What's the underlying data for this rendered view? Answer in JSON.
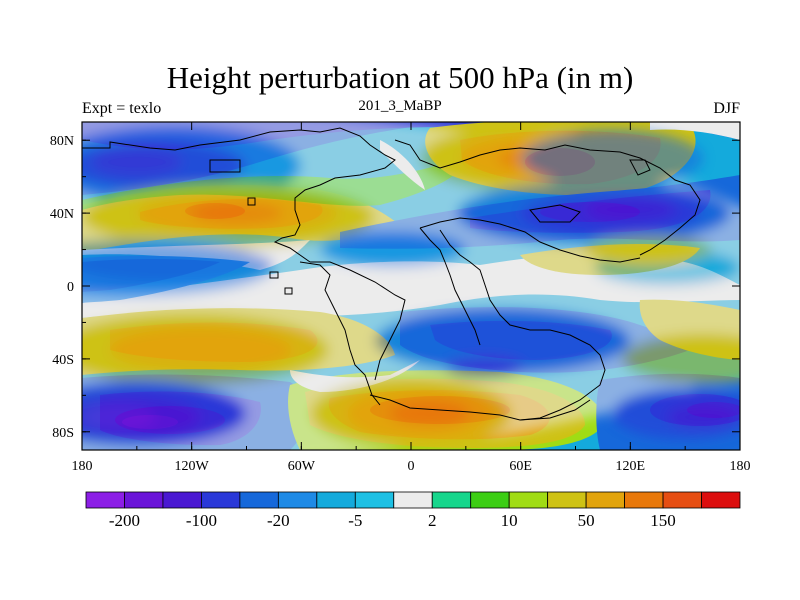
{
  "chart_data": {
    "type": "heatmap",
    "title": "Height perturbation at 500 hPa (in m)",
    "left_subtitle": "Expt = texlo",
    "center_subtitle": "201_3_MaBP",
    "right_subtitle": "DJF",
    "x_ticks": [
      {
        "value": -180,
        "label": "180"
      },
      {
        "value": -120,
        "label": "120W"
      },
      {
        "value": -60,
        "label": "60W"
      },
      {
        "value": 0,
        "label": "0"
      },
      {
        "value": 60,
        "label": "60E"
      },
      {
        "value": 120,
        "label": "120E"
      },
      {
        "value": 180,
        "label": "180"
      }
    ],
    "y_ticks": [
      {
        "value": 80,
        "label": "80N"
      },
      {
        "value": 40,
        "label": "40N"
      },
      {
        "value": 0,
        "label": "0"
      },
      {
        "value": -40,
        "label": "40S"
      },
      {
        "value": -80,
        "label": "80S"
      }
    ],
    "xlim": [
      -180,
      180
    ],
    "ylim": [
      -90,
      90
    ],
    "colorbar": {
      "colors": [
        "#8c1ee6",
        "#6a14d8",
        "#4a18d2",
        "#2a38d8",
        "#1668da",
        "#1e8ae6",
        "#14aadc",
        "#1ec0e4",
        "#ececec",
        "#16d68c",
        "#3cce14",
        "#a0dc14",
        "#cec214",
        "#e2a40c",
        "#e8780a",
        "#e64e12",
        "#dc0e0e"
      ],
      "labels": [
        {
          "after_box": 1,
          "text": "-200"
        },
        {
          "after_box": 3,
          "text": "-100"
        },
        {
          "after_box": 5,
          "text": "-20"
        },
        {
          "after_box": 7,
          "text": "-5"
        },
        {
          "after_box": 9,
          "text": "2"
        },
        {
          "after_box": 11,
          "text": "10"
        },
        {
          "after_box": 13,
          "text": "50"
        },
        {
          "after_box": 15,
          "text": "150"
        }
      ]
    },
    "field_blobs": [
      {
        "lon": -180,
        "lat": 0,
        "rx": 400,
        "ry": 100,
        "color": "#ececec"
      },
      {
        "lon": -130,
        "lat": 66,
        "rx": 70,
        "ry": 22,
        "color": "#1e8ae6"
      },
      {
        "lon": -140,
        "lat": 66,
        "rx": 50,
        "ry": 14,
        "color": "#2a38d8"
      },
      {
        "lon": -150,
        "lat": 68,
        "rx": 25,
        "ry": 8,
        "color": "#4a18d2"
      },
      {
        "lon": -100,
        "lat": 38,
        "rx": 80,
        "ry": 18,
        "color": "#cec214"
      },
      {
        "lon": -95,
        "lat": 40,
        "rx": 55,
        "ry": 12,
        "color": "#e2a40c"
      },
      {
        "lon": -95,
        "lat": 40,
        "rx": 25,
        "ry": 6,
        "color": "#e8780a"
      },
      {
        "lon": -150,
        "lat": 10,
        "rx": 75,
        "ry": 16,
        "color": "#1e8ae6"
      },
      {
        "lon": -130,
        "lat": 12,
        "rx": 55,
        "ry": 10,
        "color": "#1668da"
      },
      {
        "lon": -120,
        "lat": -35,
        "rx": 75,
        "ry": 20,
        "color": "#cec214"
      },
      {
        "lon": -115,
        "lat": -35,
        "rx": 50,
        "ry": 12,
        "color": "#e2a40c"
      },
      {
        "lon": -150,
        "lat": -70,
        "rx": 60,
        "ry": 18,
        "color": "#2a38d8"
      },
      {
        "lon": -155,
        "lat": -72,
        "rx": 40,
        "ry": 12,
        "color": "#4a18d2"
      },
      {
        "lon": -160,
        "lat": -72,
        "rx": 20,
        "ry": 7,
        "color": "#6a14d8"
      },
      {
        "lon": 0,
        "lat": -70,
        "rx": 55,
        "ry": 20,
        "color": "#cec214"
      },
      {
        "lon": 5,
        "lat": -70,
        "rx": 40,
        "ry": 14,
        "color": "#e2a40c"
      },
      {
        "lon": 10,
        "lat": -70,
        "rx": 22,
        "ry": 7,
        "color": "#e8780a"
      },
      {
        "lon": 60,
        "lat": 70,
        "rx": 55,
        "ry": 18,
        "color": "#cec214"
      },
      {
        "lon": 65,
        "lat": 70,
        "rx": 38,
        "ry": 12,
        "color": "#e2a40c"
      },
      {
        "lon": 65,
        "lat": 70,
        "rx": 18,
        "ry": 6,
        "color": "#e8780a"
      },
      {
        "lon": 100,
        "lat": 40,
        "rx": 75,
        "ry": 18,
        "color": "#1668da"
      },
      {
        "lon": 110,
        "lat": 40,
        "rx": 50,
        "ry": 12,
        "color": "#2a38d8"
      },
      {
        "lon": 120,
        "lat": 42,
        "rx": 25,
        "ry": 7,
        "color": "#4a18d2"
      },
      {
        "lon": 50,
        "lat": -30,
        "rx": 70,
        "ry": 18,
        "color": "#1668da"
      },
      {
        "lon": 40,
        "lat": -45,
        "rx": 22,
        "ry": 6,
        "color": "#4a18d2"
      },
      {
        "lon": 140,
        "lat": 10,
        "rx": 40,
        "ry": 10,
        "color": "#14aadc"
      },
      {
        "lon": 130,
        "lat": 20,
        "rx": 35,
        "ry": 8,
        "color": "#cec214"
      },
      {
        "lon": 160,
        "lat": -40,
        "rx": 45,
        "ry": 14,
        "color": "#cec214"
      },
      {
        "lon": 150,
        "lat": -70,
        "rx": 40,
        "ry": 14,
        "color": "#2a38d8"
      },
      {
        "lon": 160,
        "lat": -72,
        "rx": 20,
        "ry": 7,
        "color": "#4a18d2"
      },
      {
        "lon": -10,
        "lat": 20,
        "rx": 40,
        "ry": 10,
        "color": "#1e8ae6"
      },
      {
        "lon": 110,
        "lat": 70,
        "rx": 50,
        "ry": 16,
        "color": "#1668da"
      }
    ]
  }
}
